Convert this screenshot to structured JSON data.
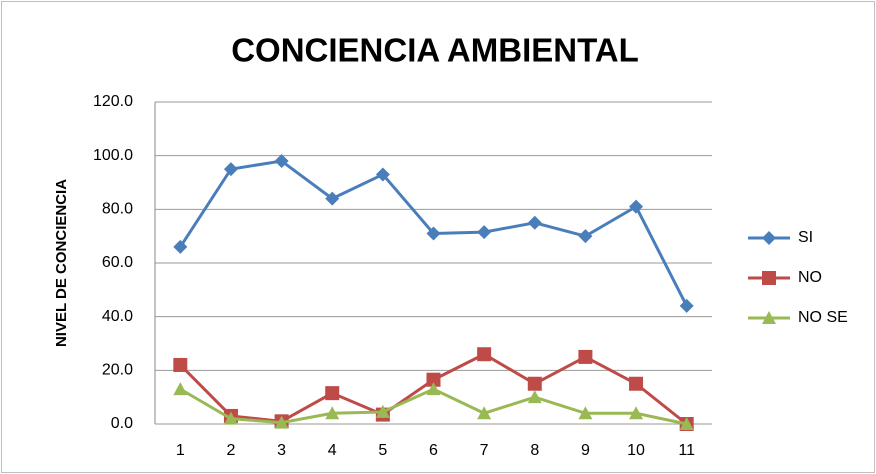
{
  "chart_data": {
    "type": "line",
    "title": "CONCIENCIA AMBIENTAL",
    "y_label": "NIVEL DE CONCIENCIA",
    "categories": [
      "1",
      "2",
      "3",
      "4",
      "5",
      "6",
      "7",
      "8",
      "9",
      "10",
      "11"
    ],
    "series": [
      {
        "name": "SI",
        "color": "#4a7ebb",
        "marker": "diamond",
        "values": [
          66,
          95,
          98,
          84,
          93,
          71,
          71.5,
          75,
          70,
          81,
          44
        ]
      },
      {
        "name": "NO",
        "color": "#be4b48",
        "marker": "square",
        "values": [
          22,
          3,
          1,
          11.5,
          3.5,
          16.5,
          26,
          15,
          25,
          15,
          0
        ]
      },
      {
        "name": "NO SE",
        "color": "#98b954",
        "marker": "triangle",
        "values": [
          13,
          2,
          0.5,
          4,
          4.5,
          13,
          4,
          10,
          4,
          4,
          0
        ]
      }
    ],
    "ylim": [
      0,
      120
    ],
    "yticks": [
      {
        "value": 0,
        "label": "0.0"
      },
      {
        "value": 20,
        "label": "20.0"
      },
      {
        "value": 40,
        "label": "40.0"
      },
      {
        "value": 60,
        "label": "60.0"
      },
      {
        "value": 80,
        "label": "80.0"
      },
      {
        "value": 100,
        "label": "100.0"
      },
      {
        "value": 120,
        "label": "120.0"
      }
    ],
    "grid": true,
    "legend": "right"
  }
}
